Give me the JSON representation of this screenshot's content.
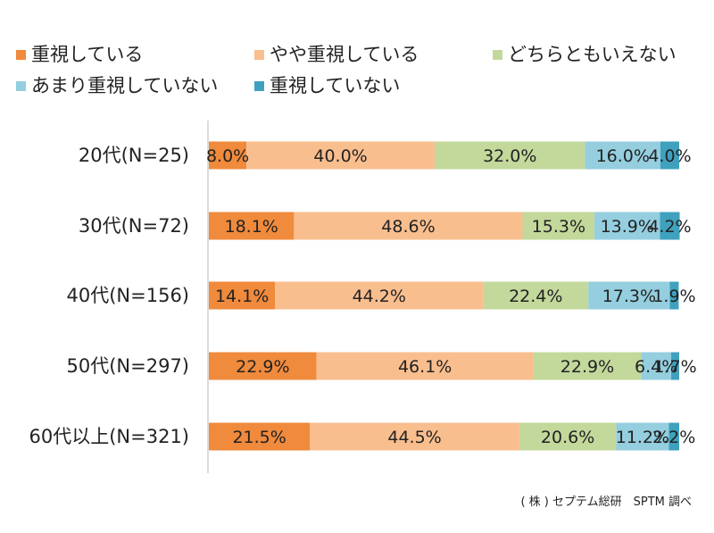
{
  "chart_data": {
    "type": "bar",
    "orientation": "horizontal",
    "stacked": true,
    "percent_stacked": true,
    "categories": [
      "20代(N=25)",
      "30代(N=72)",
      "40代(N=156)",
      "50代(N=297)",
      "60代以上(N=321)"
    ],
    "series": [
      {
        "name": "重視している",
        "color": "#F08A3C",
        "values": [
          8.0,
          18.1,
          14.1,
          22.9,
          21.5
        ],
        "labels": [
          "8.0%",
          "18.1%",
          "14.1%",
          "22.9%",
          "21.5%"
        ]
      },
      {
        "name": "やや重視している",
        "color": "#F9BE8E",
        "values": [
          40.0,
          48.6,
          44.2,
          46.1,
          44.5
        ],
        "labels": [
          "40.0%",
          "48.6%",
          "44.2%",
          "46.1%",
          "44.5%"
        ]
      },
      {
        "name": "どちらともいえない",
        "color": "#C3D89B",
        "values": [
          32.0,
          15.3,
          22.4,
          22.9,
          20.6
        ],
        "labels": [
          "32.0%",
          "15.3%",
          "22.4%",
          "22.9%",
          "20.6%"
        ]
      },
      {
        "name": "あまり重視していない",
        "color": "#94CEDF",
        "values": [
          16.0,
          13.9,
          17.3,
          6.4,
          11.2
        ],
        "labels": [
          "16.0%",
          "13.9%",
          "17.3%",
          "6.4%",
          "11.2%"
        ]
      },
      {
        "name": "重視していない",
        "color": "#3FA1BE",
        "values": [
          4.0,
          4.2,
          1.9,
          1.7,
          2.2
        ],
        "labels": [
          "4.0%",
          "4.2%",
          "1.9%",
          "1.7%",
          "2.2%"
        ]
      }
    ],
    "xlim": [
      0,
      100
    ],
    "grid": false,
    "legend_position": "top"
  },
  "source_note": "( 株 ) セプテム総研　SPTM 調べ"
}
